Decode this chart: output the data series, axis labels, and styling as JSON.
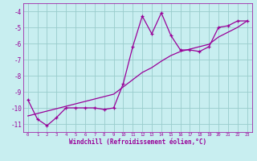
{
  "xlabel": "Windchill (Refroidissement éolien,°C)",
  "bg_color": "#c8eef0",
  "grid_color": "#99cccc",
  "line_color": "#990099",
  "xlim": [
    -0.5,
    23.5
  ],
  "ylim": [
    -11.5,
    -3.5
  ],
  "yticks": [
    -4,
    -5,
    -6,
    -7,
    -8,
    -9,
    -10,
    -11
  ],
  "xticks": [
    0,
    1,
    2,
    3,
    4,
    5,
    6,
    7,
    8,
    9,
    10,
    11,
    12,
    13,
    14,
    15,
    16,
    17,
    18,
    19,
    20,
    21,
    22,
    23
  ],
  "hours": [
    0,
    1,
    2,
    3,
    4,
    5,
    6,
    7,
    8,
    9,
    10,
    11,
    12,
    13,
    14,
    15,
    16,
    17,
    18,
    19,
    20,
    21,
    22,
    23
  ],
  "windchill": [
    -9.5,
    -10.7,
    -11.1,
    -10.6,
    -10.0,
    -10.0,
    -10.0,
    -10.0,
    -10.1,
    -10.0,
    -8.5,
    -6.2,
    -4.3,
    -5.4,
    -4.1,
    -5.5,
    -6.4,
    -6.4,
    -6.5,
    -6.2,
    -5.0,
    -4.9,
    -4.6,
    -4.6
  ],
  "smooth": [
    -10.5,
    -10.35,
    -10.2,
    -10.05,
    -9.9,
    -9.75,
    -9.6,
    -9.45,
    -9.3,
    -9.15,
    -8.7,
    -8.25,
    -7.8,
    -7.5,
    -7.1,
    -6.75,
    -6.5,
    -6.35,
    -6.2,
    -6.05,
    -5.6,
    -5.3,
    -5.0,
    -4.6
  ]
}
